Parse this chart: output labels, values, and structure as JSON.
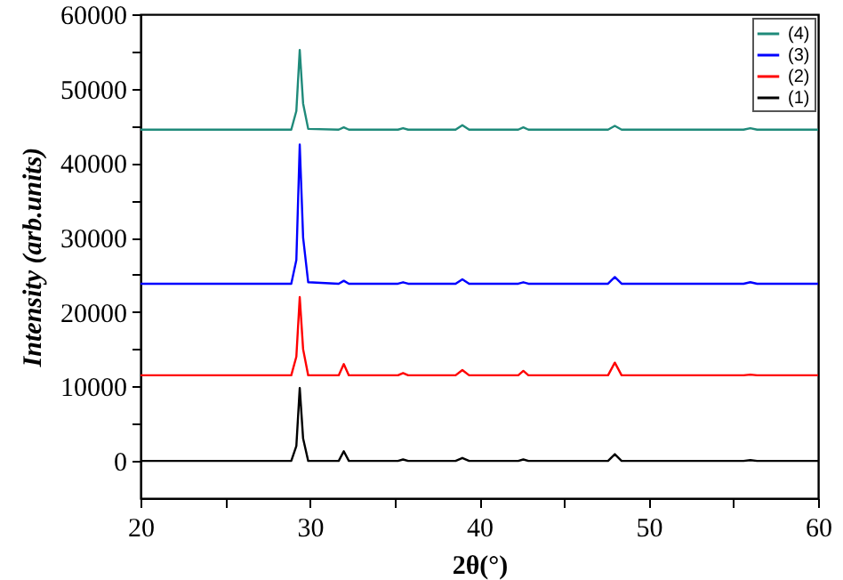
{
  "chart_data": {
    "type": "line",
    "xlabel": "2θ(°)",
    "ylabel": "Intensity (arb.units)",
    "x": [
      20,
      24,
      28.9,
      29.2,
      29.4,
      29.6,
      29.9,
      31.7,
      32.0,
      32.3,
      35.2,
      35.5,
      35.8,
      38.6,
      39.0,
      39.4,
      42.3,
      42.6,
      42.9,
      47.6,
      48.0,
      48.4,
      55.6,
      56.0,
      56.4,
      60
    ],
    "series": [
      {
        "name": "(4)",
        "color": "#1f8a7a",
        "values": [
          44500,
          44500,
          44500,
          47000,
          55200,
          48000,
          44600,
          44500,
          44800,
          44500,
          44500,
          44700,
          44500,
          44500,
          45100,
          44500,
          44500,
          44800,
          44500,
          44500,
          45000,
          44500,
          44500,
          44700,
          44500,
          44500
        ]
      },
      {
        "name": "(3)",
        "color": "#0000ff",
        "values": [
          23800,
          23800,
          23800,
          27000,
          42500,
          30000,
          24000,
          23800,
          24200,
          23800,
          23800,
          24000,
          23800,
          23800,
          24400,
          23800,
          23800,
          24000,
          23800,
          23800,
          24700,
          23800,
          23800,
          24000,
          23800,
          23800
        ]
      },
      {
        "name": "(2)",
        "color": "#ff0000",
        "values": [
          11500,
          11500,
          11500,
          14000,
          22000,
          15000,
          11500,
          11500,
          13000,
          11500,
          11500,
          11800,
          11500,
          11500,
          12200,
          11500,
          11500,
          12100,
          11500,
          11500,
          13200,
          11500,
          11500,
          11600,
          11500,
          11500
        ]
      },
      {
        "name": "(1)",
        "color": "#000000",
        "values": [
          0,
          0,
          0,
          2000,
          9800,
          3000,
          0,
          0,
          1300,
          0,
          0,
          200,
          0,
          0,
          400,
          0,
          0,
          200,
          0,
          0,
          900,
          0,
          0,
          100,
          0,
          0
        ]
      }
    ],
    "xlim": [
      20,
      60
    ],
    "xticks": [
      20,
      {
        "value": 25,
        "label": null
      },
      30,
      {
        "value": 35,
        "label": null
      },
      40,
      {
        "value": 45,
        "label": null
      },
      50,
      {
        "value": 55,
        "label": null
      },
      60
    ],
    "ylim": [
      -5000,
      60000
    ],
    "yticks": [
      0,
      {
        "value": 5000,
        "label": null
      },
      10000,
      {
        "value": 15000,
        "label": null
      },
      20000,
      {
        "value": 25000,
        "label": null
      },
      30000,
      {
        "value": 35000,
        "label": null
      },
      40000,
      {
        "value": 45000,
        "label": null
      },
      50000,
      {
        "value": 55000,
        "label": null
      },
      60000
    ],
    "legend": "top right",
    "grid": false,
    "marker": "none",
    "line_style": "solid"
  }
}
